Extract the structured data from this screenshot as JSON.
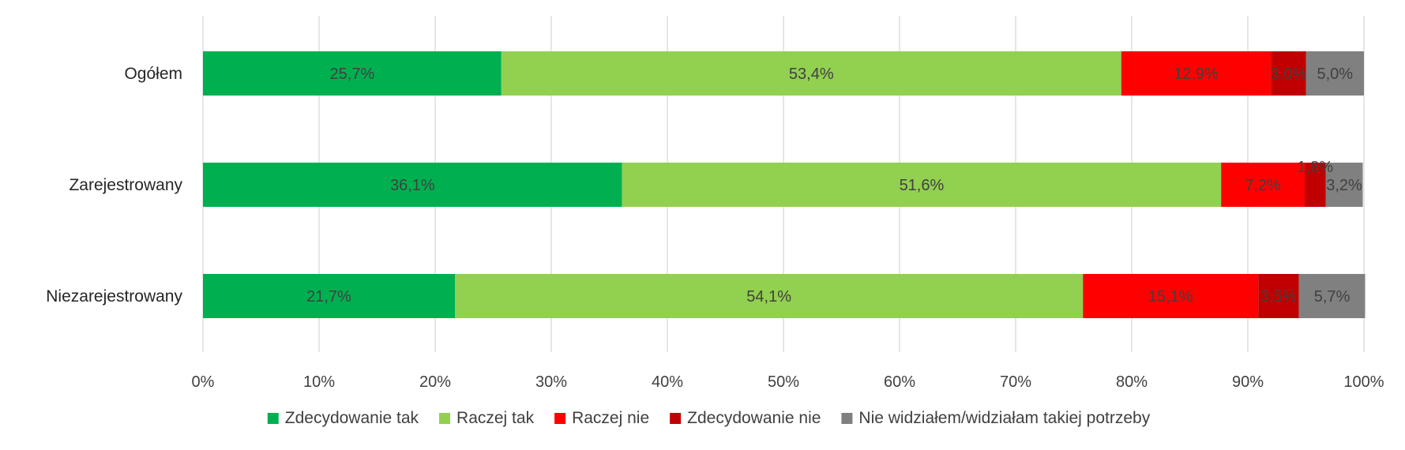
{
  "chart_data": {
    "type": "bar",
    "orientation": "horizontal",
    "stacked": true,
    "categories": [
      "Ogółem",
      "Zarejestrowany",
      "Niezarejestrowany"
    ],
    "series": [
      {
        "name": "Zdecydowanie tak",
        "color": "#00b050",
        "values": [
          25.7,
          36.1,
          21.7
        ],
        "labels": [
          "25,7%",
          "36,1%",
          "21,7%"
        ]
      },
      {
        "name": "Raczej tak",
        "color": "#92d050",
        "values": [
          53.4,
          51.6,
          54.1
        ],
        "labels": [
          "53,4%",
          "51,6%",
          "54,1%"
        ]
      },
      {
        "name": "Raczej nie",
        "color": "#ff0000",
        "values": [
          12.9,
          7.2,
          15.1
        ],
        "labels": [
          "12,9%",
          "7,2%",
          "15,1%"
        ]
      },
      {
        "name": "Zdecydowanie nie",
        "color": "#c00000",
        "values": [
          3.0,
          1.8,
          3.5
        ],
        "labels": [
          "3,0%",
          "1,8%",
          "3,5%"
        ]
      },
      {
        "name": "Nie widziałem/widziałam takiej potrzeby",
        "color": "#808080",
        "values": [
          5.0,
          3.2,
          5.7
        ],
        "labels": [
          "5,0%",
          "3,2%",
          "5,7%"
        ]
      }
    ],
    "xlim": [
      0,
      100
    ],
    "x_ticks": [
      "0%",
      "10%",
      "20%",
      "30%",
      "40%",
      "50%",
      "60%",
      "70%",
      "80%",
      "90%",
      "100%"
    ],
    "grid": true,
    "legend_position": "bottom"
  }
}
